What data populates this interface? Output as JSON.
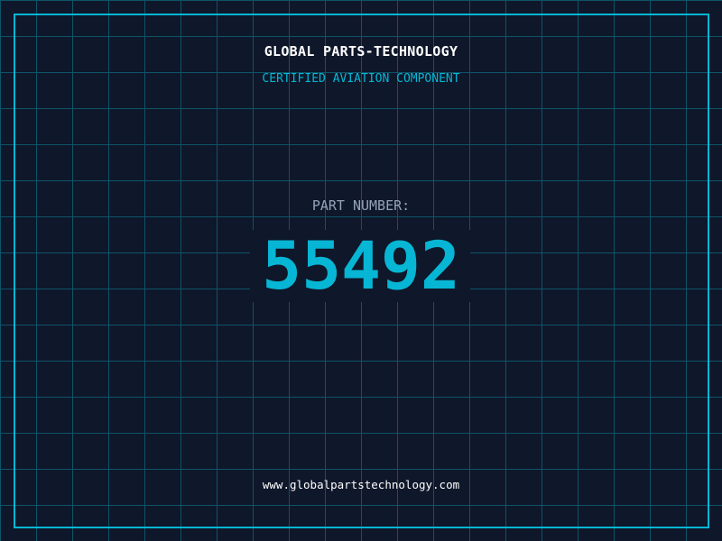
{
  "header": {
    "company": "GLOBAL PARTS-TECHNOLOGY",
    "subtitle": "CERTIFIED AVIATION COMPONENT"
  },
  "part": {
    "label": "PART NUMBER:",
    "number": "55492"
  },
  "footer": {
    "url": "www.globalpartstechnology.com"
  },
  "colors": {
    "background": "#0f172a",
    "accent": "#06b6d4",
    "grid": "#0e5468",
    "label": "#94a3b8"
  }
}
